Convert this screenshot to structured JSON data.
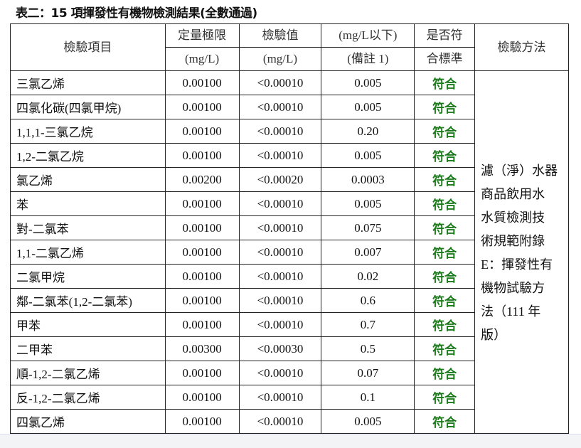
{
  "title": "表二：15 項揮發性有機物檢測結果(全數通過)",
  "headers": {
    "item": "檢驗項目",
    "loq_line1": "定量極限",
    "loq_line2": "(mg/L)",
    "value_line1": "檢驗值",
    "value_line2": "(mg/L)",
    "limit_line1": "(mg/L以下)",
    "limit_line2": "(備註 1)",
    "compliant_line1": "是否符",
    "compliant_line2": "合標準",
    "method": "檢驗方法"
  },
  "rows": [
    {
      "item": "三氯乙烯",
      "loq": "0.00100",
      "value": "<0.00010",
      "limit": "0.005",
      "result": "符合"
    },
    {
      "item": "四氯化碳(四氯甲烷)",
      "loq": "0.00100",
      "value": "<0.00010",
      "limit": "0.005",
      "result": "符合"
    },
    {
      "item": "1,1,1-三氯乙烷",
      "loq": "0.00100",
      "value": "<0.00010",
      "limit": "0.20",
      "result": "符合"
    },
    {
      "item": "1,2-二氯乙烷",
      "loq": "0.00100",
      "value": "<0.00010",
      "limit": "0.005",
      "result": "符合"
    },
    {
      "item": "氯乙烯",
      "loq": "0.00200",
      "value": "<0.00020",
      "limit": "0.0003",
      "result": "符合"
    },
    {
      "item": "苯",
      "loq": "0.00100",
      "value": "<0.00010",
      "limit": "0.005",
      "result": "符合"
    },
    {
      "item": "對-二氯苯",
      "loq": "0.00100",
      "value": "<0.00010",
      "limit": "0.075",
      "result": "符合"
    },
    {
      "item": "1,1-二氯乙烯",
      "loq": "0.00100",
      "value": "<0.00010",
      "limit": "0.007",
      "result": "符合"
    },
    {
      "item": "二氯甲烷",
      "loq": "0.00100",
      "value": "<0.00010",
      "limit": "0.02",
      "result": "符合"
    },
    {
      "item": "鄰-二氯苯(1,2-二氯苯)",
      "loq": "0.00100",
      "value": "<0.00010",
      "limit": "0.6",
      "result": "符合"
    },
    {
      "item": "甲苯",
      "loq": "0.00100",
      "value": "<0.00010",
      "limit": "0.7",
      "result": "符合"
    },
    {
      "item": "二甲苯",
      "loq": "0.00300",
      "value": "<0.00030",
      "limit": "0.5",
      "result": "符合"
    },
    {
      "item": "順-1,2-二氯乙烯",
      "loq": "0.00100",
      "value": "<0.00010",
      "limit": "0.07",
      "result": "符合"
    },
    {
      "item": "反-1,2-二氯乙烯",
      "loq": "0.00100",
      "value": "<0.00010",
      "limit": "0.1",
      "result": "符合"
    },
    {
      "item": "四氯乙烯",
      "loq": "0.00100",
      "value": "<0.00010",
      "limit": "0.005",
      "result": "符合"
    }
  ],
  "method_lines": [
    "濾（淨）水器",
    "商品飲用水",
    "水質檢測技",
    "術規範附錄",
    "E：揮發性有",
    "機物試驗方",
    "法（111 年",
    "版）"
  ],
  "colors": {
    "pass": "#1a7a1a"
  }
}
